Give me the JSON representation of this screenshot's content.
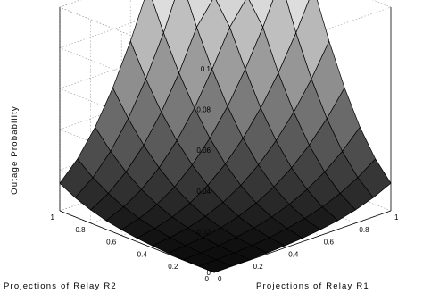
{
  "chart_data": {
    "type": "surface3d",
    "title": "",
    "xlabel": "Projections of Relay R1",
    "ylabel": "Projections of Relay R2",
    "zlabel": "Outage Probability",
    "x": [
      0,
      0.1,
      0.2,
      0.3,
      0.4,
      0.5,
      0.6,
      0.7,
      0.8,
      0.9,
      1
    ],
    "y": [
      0,
      0.1,
      0.2,
      0.3,
      0.4,
      0.5,
      0.6,
      0.7,
      0.8,
      0.9,
      1
    ],
    "z_formula_note": "",
    "z": [
      [
        0.0,
        0.0001,
        0.0002,
        0.0005,
        0.001,
        0.0017,
        0.0028,
        0.0043,
        0.0065,
        0.0095,
        0.0135
      ],
      [
        0.0001,
        0.0002,
        0.0005,
        0.0011,
        0.002,
        0.0034,
        0.0053,
        0.008,
        0.0116,
        0.0163,
        0.0224
      ],
      [
        0.0002,
        0.0005,
        0.0011,
        0.0021,
        0.0037,
        0.006,
        0.0092,
        0.0135,
        0.0191,
        0.0262,
        0.035
      ],
      [
        0.0005,
        0.0011,
        0.0021,
        0.0038,
        0.0063,
        0.0099,
        0.0147,
        0.0211,
        0.0292,
        0.0392,
        0.0513
      ],
      [
        0.001,
        0.002,
        0.0037,
        0.0063,
        0.0102,
        0.0155,
        0.0225,
        0.0314,
        0.0424,
        0.0556,
        0.0712
      ],
      [
        0.0017,
        0.0034,
        0.006,
        0.0099,
        0.0155,
        0.023,
        0.0326,
        0.0444,
        0.0586,
        0.0752,
        0.0942
      ],
      [
        0.0028,
        0.0053,
        0.0092,
        0.0147,
        0.0225,
        0.0326,
        0.0452,
        0.0604,
        0.078,
        0.0983,
        0.1
      ],
      [
        0.0043,
        0.008,
        0.0135,
        0.0211,
        0.0314,
        0.0444,
        0.0604,
        0.078,
        0.09,
        0.095,
        0.1
      ],
      [
        0.0065,
        0.0116,
        0.0191,
        0.0292,
        0.0424,
        0.0586,
        0.078,
        0.09,
        0.095,
        0.098,
        0.1
      ],
      [
        0.0095,
        0.0163,
        0.0262,
        0.0392,
        0.0556,
        0.0752,
        0.0983,
        0.095,
        0.098,
        0.099,
        0.1
      ],
      [
        0.0135,
        0.0224,
        0.035,
        0.0513,
        0.0712,
        0.0942,
        0.1,
        0.1,
        0.1,
        0.1,
        0.1
      ]
    ],
    "xlim": [
      0,
      1
    ],
    "ylim": [
      0,
      1
    ],
    "zlim": [
      0,
      0.1
    ],
    "x_ticks": [
      "0",
      "0.2",
      "0.4",
      "0.6",
      "0.8",
      "1"
    ],
    "y_ticks": [
      "0",
      "0.2",
      "0.4",
      "0.6",
      "0.8",
      "1"
    ],
    "z_ticks": [
      "0",
      "0.02",
      "0.04",
      "0.06",
      "0.08",
      "0.1"
    ],
    "colormap": "gray",
    "grid": true
  }
}
